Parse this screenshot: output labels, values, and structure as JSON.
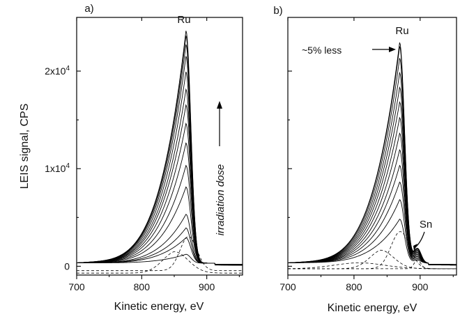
{
  "chart_data": [
    {
      "type": "line",
      "panel_label": "a)",
      "xlabel": "Kinetic energy, eV",
      "ylabel": "LEIS signal, CPS",
      "xlim": [
        700,
        955
      ],
      "ylim": [
        -900,
        25500
      ],
      "x_ticks": [
        700,
        800,
        900
      ],
      "y_ticks": [
        {
          "value": 0,
          "base": "0",
          "exp": ""
        },
        {
          "value": 10000,
          "base": "1x10",
          "exp": "4"
        },
        {
          "value": 20000,
          "base": "2x10",
          "exp": "4"
        }
      ],
      "peak_label": "Ru",
      "arrow_label": "irradiation dose",
      "dashed_components": [
        "left-tail",
        "ru-peak"
      ],
      "series_peak_values": [
        900,
        2600,
        3600,
        5000,
        7800,
        10000,
        12300,
        14300,
        16200,
        17800,
        19600,
        21200,
        22400,
        23300,
        23800
      ]
    },
    {
      "type": "line",
      "panel_label": "b)",
      "xlabel": "Kinetic energy, eV",
      "ylabel": "",
      "xlim": [
        700,
        955
      ],
      "ylim": [
        -900,
        25500
      ],
      "x_ticks": [
        700,
        800,
        900
      ],
      "y_ticks": [],
      "peak_label": "Ru",
      "peak_annotation": "~5% less",
      "sn_label": "Sn",
      "dashed_components": [
        "left-tail",
        "middle",
        "ru-peak",
        "sn-peak"
      ],
      "series_peak_values": [
        4500,
        6500,
        8300,
        10000,
        11600,
        13300,
        14900,
        16500,
        18000,
        19500,
        21000,
        22200,
        22600
      ]
    }
  ]
}
